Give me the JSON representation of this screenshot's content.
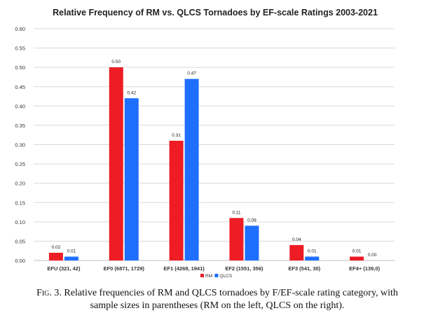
{
  "chart_data": {
    "type": "bar",
    "title": "Relative Frequency of RM vs. QLCS Tornadoes  by EF-scale Ratings 2003-2021",
    "xlabel": "",
    "ylabel": "",
    "categories": [
      "EFU (321, 42)",
      "EF0 (6871, 1729)",
      "EF1 (4268, 1941)",
      "EF2 (1551, 356)",
      "EF3 (541, 30)",
      "EF4+ (139,0)"
    ],
    "series": [
      {
        "name": "RM",
        "color": "#ee1c25",
        "values": [
          0.02,
          0.5,
          0.31,
          0.11,
          0.04,
          0.01
        ],
        "labels": [
          "0.02",
          "0.50",
          "0.31",
          "0.11",
          "0.04",
          "0.01"
        ]
      },
      {
        "name": "QLCS",
        "color": "#1f6fff",
        "values": [
          0.01,
          0.42,
          0.47,
          0.09,
          0.01,
          0.0
        ],
        "labels": [
          "0.01",
          "0.42",
          "0.47",
          "0.09",
          "0.01",
          "0.00"
        ]
      }
    ],
    "ylim": [
      0,
      0.6
    ],
    "yticks": [
      "0.00",
      "0.05",
      "0.10",
      "0.15",
      "0.20",
      "0.25",
      "0.30",
      "0.35",
      "0.40",
      "0.45",
      "0.50",
      "0.55",
      "0.60"
    ],
    "grid": true,
    "legend": "bottom-center"
  },
  "caption": {
    "fig_label": "Fig. 3.",
    "text": "Relative frequencies of RM and QLCS tornadoes by F/EF-scale rating category, with sample sizes in parentheses (RM on the left, QLCS on the right)."
  }
}
